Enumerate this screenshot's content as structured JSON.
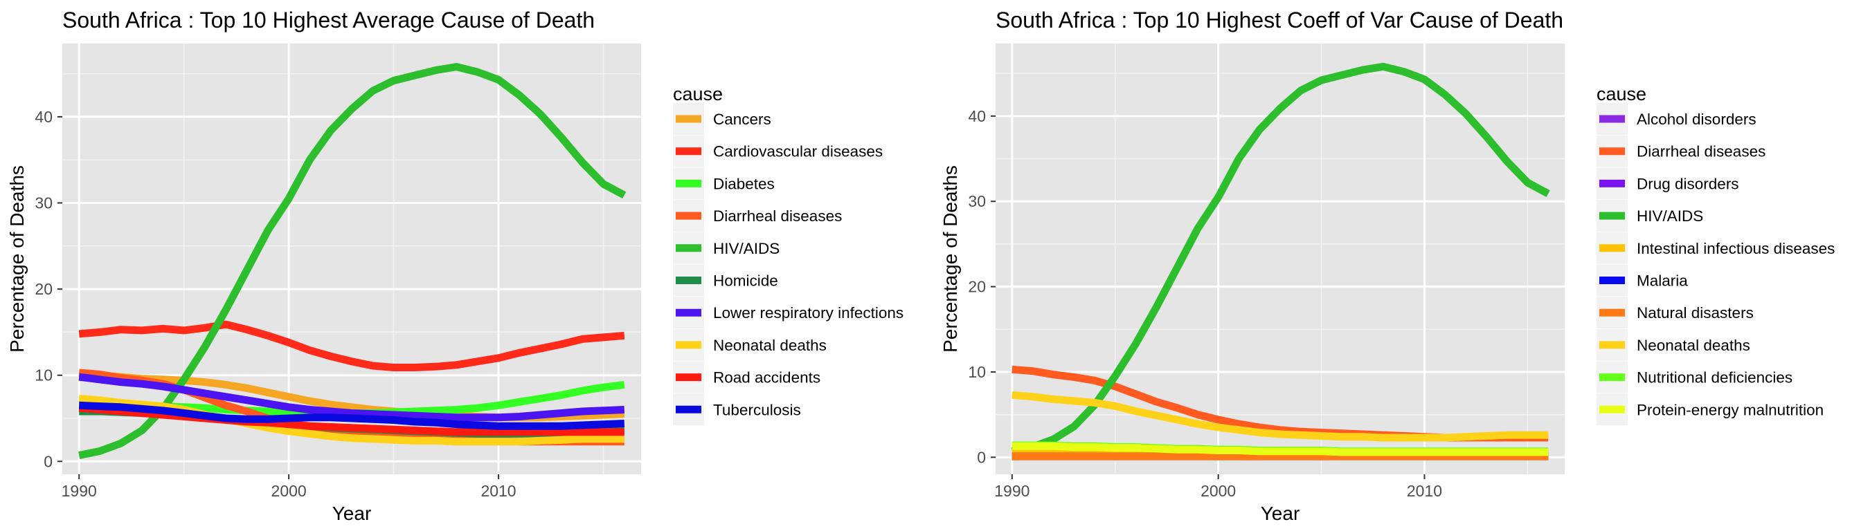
{
  "chart_data": [
    {
      "type": "line",
      "title": "South Africa : Top  10  Highest Average Cause of Death",
      "xlabel": "Year",
      "ylabel": "Percentage of Deaths",
      "xlim": [
        1989.2,
        2016.8
      ],
      "ylim": [
        -1.5,
        48.5
      ],
      "x_ticks": [
        1990,
        2000,
        2010
      ],
      "y_ticks": [
        0,
        10,
        20,
        30,
        40
      ],
      "x_tick_labels": [
        "1990",
        "2000",
        "2010"
      ],
      "y_tick_labels": [
        "0",
        "10",
        "20",
        "30",
        "40"
      ],
      "grid": true,
      "legend": {
        "title": "cause",
        "position": "right"
      },
      "x": [
        1990,
        1991,
        1992,
        1993,
        1994,
        1995,
        1996,
        1997,
        1998,
        1999,
        2000,
        2001,
        2002,
        2003,
        2004,
        2005,
        2006,
        2007,
        2008,
        2009,
        2010,
        2011,
        2012,
        2013,
        2014,
        2015,
        2016
      ],
      "series": [
        {
          "name": "Cancers",
          "color": "#F5A623",
          "values": [
            10.2,
            10.0,
            9.8,
            9.6,
            9.5,
            9.4,
            9.2,
            8.9,
            8.5,
            8.0,
            7.5,
            7.0,
            6.6,
            6.3,
            6.0,
            5.8,
            5.6,
            5.4,
            5.3,
            5.2,
            5.1,
            5.1,
            5.1,
            5.2,
            5.3,
            5.4,
            5.5
          ]
        },
        {
          "name": "Cardiovascular diseases",
          "color": "#FF2A1A",
          "values": [
            14.8,
            15.0,
            15.3,
            15.2,
            15.4,
            15.2,
            15.5,
            15.9,
            15.3,
            14.6,
            13.8,
            12.9,
            12.2,
            11.6,
            11.1,
            10.9,
            10.9,
            11.0,
            11.2,
            11.6,
            12.0,
            12.6,
            13.1,
            13.6,
            14.2,
            14.4,
            14.6
          ]
        },
        {
          "name": "Diabetes",
          "color": "#33FF22",
          "values": [
            6.8,
            6.7,
            6.6,
            6.5,
            6.4,
            6.3,
            6.2,
            6.0,
            5.9,
            5.8,
            5.7,
            5.6,
            5.6,
            5.6,
            5.6,
            5.7,
            5.8,
            5.9,
            6.0,
            6.2,
            6.5,
            6.9,
            7.3,
            7.7,
            8.2,
            8.6,
            8.9
          ]
        },
        {
          "name": "Diarrheal diseases",
          "color": "#FF5A1F",
          "values": [
            10.3,
            10.1,
            9.7,
            9.4,
            9.0,
            8.3,
            7.4,
            6.5,
            5.8,
            5.0,
            4.4,
            3.9,
            3.5,
            3.2,
            3.0,
            2.9,
            2.8,
            2.7,
            2.6,
            2.5,
            2.4,
            2.3,
            2.3,
            2.3,
            2.3,
            2.3,
            2.3
          ]
        },
        {
          "name": "HIV/AIDS",
          "color": "#2DBE2D",
          "values": [
            0.7,
            1.2,
            2.1,
            3.6,
            6.1,
            9.5,
            13.3,
            17.6,
            22.2,
            26.8,
            30.5,
            35.0,
            38.4,
            40.9,
            43.0,
            44.2,
            44.8,
            45.4,
            45.8,
            45.2,
            44.3,
            42.5,
            40.3,
            37.6,
            34.7,
            32.2,
            30.9
          ]
        },
        {
          "name": "Homicide",
          "color": "#1E8C4A",
          "values": [
            5.8,
            5.8,
            5.7,
            5.6,
            5.5,
            5.3,
            5.1,
            4.9,
            4.7,
            4.5,
            4.3,
            4.1,
            3.9,
            3.8,
            3.7,
            3.6,
            3.5,
            3.4,
            3.3,
            3.2,
            3.2,
            3.2,
            3.2,
            3.3,
            3.4,
            3.5,
            3.6
          ]
        },
        {
          "name": "Lower respiratory infections",
          "color": "#4B14F0",
          "values": [
            9.8,
            9.5,
            9.2,
            9.0,
            8.7,
            8.3,
            7.9,
            7.5,
            7.1,
            6.7,
            6.3,
            6.0,
            5.8,
            5.6,
            5.5,
            5.4,
            5.3,
            5.2,
            5.1,
            5.1,
            5.1,
            5.2,
            5.4,
            5.6,
            5.8,
            5.9,
            6.0
          ]
        },
        {
          "name": "Neonatal deaths",
          "color": "#FFD21A",
          "values": [
            7.3,
            7.1,
            6.8,
            6.6,
            6.4,
            6.0,
            5.4,
            4.9,
            4.4,
            3.9,
            3.5,
            3.2,
            2.9,
            2.7,
            2.6,
            2.5,
            2.4,
            2.4,
            2.3,
            2.3,
            2.3,
            2.3,
            2.4,
            2.5,
            2.6,
            2.6,
            2.6
          ]
        },
        {
          "name": "Road accidents",
          "color": "#FF1A10",
          "values": [
            6.2,
            6.0,
            5.8,
            5.6,
            5.4,
            5.2,
            5.0,
            4.8,
            4.6,
            4.5,
            4.3,
            4.1,
            4.0,
            3.9,
            3.8,
            3.7,
            3.6,
            3.5,
            3.4,
            3.4,
            3.4,
            3.4,
            3.4,
            3.4,
            3.4,
            3.4,
            3.4
          ]
        },
        {
          "name": "Tuberculosis",
          "color": "#0A0AE0",
          "values": [
            6.5,
            6.4,
            6.3,
            6.1,
            5.9,
            5.6,
            5.3,
            5.0,
            4.9,
            4.9,
            5.0,
            5.1,
            5.1,
            5.0,
            4.9,
            4.8,
            4.6,
            4.5,
            4.3,
            4.2,
            4.1,
            4.1,
            4.1,
            4.1,
            4.2,
            4.3,
            4.4
          ]
        }
      ]
    },
    {
      "type": "line",
      "title": "South Africa : Top  10  Highest Coeff of Var Cause of Death",
      "xlabel": "Year",
      "ylabel": "Percentage of Deaths",
      "xlim": [
        1989.2,
        2016.8
      ],
      "ylim": [
        -2.0,
        48.5
      ],
      "x_ticks": [
        1990,
        2000,
        2010
      ],
      "y_ticks": [
        0,
        10,
        20,
        30,
        40
      ],
      "x_tick_labels": [
        "1990",
        "2000",
        "2010"
      ],
      "y_tick_labels": [
        "0",
        "10",
        "20",
        "30",
        "40"
      ],
      "grid": true,
      "legend": {
        "title": "cause",
        "position": "right"
      },
      "x": [
        1990,
        1991,
        1992,
        1993,
        1994,
        1995,
        1996,
        1997,
        1998,
        1999,
        2000,
        2001,
        2002,
        2003,
        2004,
        2005,
        2006,
        2007,
        2008,
        2009,
        2010,
        2011,
        2012,
        2013,
        2014,
        2015,
        2016
      ],
      "series": [
        {
          "name": "Alcohol disorders",
          "color": "#8A2BE2",
          "values": [
            0.6,
            0.6,
            0.6,
            0.6,
            0.6,
            0.6,
            0.5,
            0.5,
            0.5,
            0.5,
            0.5,
            0.5,
            0.4,
            0.4,
            0.4,
            0.4,
            0.4,
            0.4,
            0.4,
            0.4,
            0.4,
            0.4,
            0.4,
            0.4,
            0.4,
            0.4,
            0.4
          ]
        },
        {
          "name": "Diarrheal diseases",
          "color": "#FF5A1F",
          "values": [
            10.3,
            10.1,
            9.7,
            9.4,
            9.0,
            8.3,
            7.4,
            6.5,
            5.8,
            5.0,
            4.4,
            3.9,
            3.5,
            3.2,
            3.0,
            2.9,
            2.8,
            2.7,
            2.6,
            2.5,
            2.4,
            2.3,
            2.3,
            2.3,
            2.3,
            2.3,
            2.3
          ]
        },
        {
          "name": "Drug disorders",
          "color": "#7A14F0",
          "values": [
            0.2,
            0.2,
            0.2,
            0.2,
            0.2,
            0.2,
            0.2,
            0.2,
            0.2,
            0.2,
            0.2,
            0.2,
            0.2,
            0.2,
            0.2,
            0.2,
            0.2,
            0.2,
            0.2,
            0.2,
            0.2,
            0.2,
            0.2,
            0.2,
            0.2,
            0.2,
            0.2
          ]
        },
        {
          "name": "HIV/AIDS",
          "color": "#2DBE2D",
          "values": [
            0.7,
            1.2,
            2.1,
            3.6,
            6.1,
            9.5,
            13.3,
            17.6,
            22.2,
            26.8,
            30.5,
            35.0,
            38.4,
            40.9,
            43.0,
            44.2,
            44.8,
            45.4,
            45.8,
            45.2,
            44.3,
            42.5,
            40.3,
            37.6,
            34.7,
            32.2,
            30.9
          ]
        },
        {
          "name": "Intestinal infectious diseases",
          "color": "#FFC200",
          "values": [
            1.0,
            1.0,
            1.0,
            0.9,
            0.9,
            0.9,
            0.8,
            0.8,
            0.7,
            0.7,
            0.6,
            0.6,
            0.6,
            0.5,
            0.5,
            0.5,
            0.5,
            0.5,
            0.5,
            0.5,
            0.5,
            0.5,
            0.5,
            0.5,
            0.5,
            0.5,
            0.5
          ]
        },
        {
          "name": "Malaria",
          "color": "#0A0AF0",
          "values": [
            0.1,
            0.1,
            0.1,
            0.1,
            0.1,
            0.1,
            0.1,
            0.1,
            0.1,
            0.1,
            0.1,
            0.1,
            0.1,
            0.1,
            0.1,
            0.1,
            0.1,
            0.1,
            0.1,
            0.1,
            0.1,
            0.1,
            0.1,
            0.1,
            0.1,
            0.1,
            0.1
          ]
        },
        {
          "name": "Natural disasters",
          "color": "#FF7A14",
          "values": [
            0.1,
            0.1,
            0.1,
            0.1,
            0.1,
            0.1,
            0.1,
            0.1,
            0.1,
            0.1,
            0.1,
            0.1,
            0.1,
            0.1,
            0.1,
            0.1,
            0.1,
            0.1,
            0.1,
            0.1,
            0.1,
            0.1,
            0.1,
            0.1,
            0.1,
            0.1,
            0.1
          ]
        },
        {
          "name": "Neonatal deaths",
          "color": "#FFD21A",
          "values": [
            7.3,
            7.1,
            6.8,
            6.6,
            6.4,
            6.0,
            5.4,
            4.9,
            4.4,
            3.9,
            3.5,
            3.2,
            2.9,
            2.7,
            2.6,
            2.5,
            2.4,
            2.4,
            2.3,
            2.3,
            2.3,
            2.3,
            2.4,
            2.5,
            2.6,
            2.6,
            2.6
          ]
        },
        {
          "name": "Nutritional deficiencies",
          "color": "#66FF1A",
          "values": [
            1.4,
            1.4,
            1.4,
            1.3,
            1.3,
            1.2,
            1.2,
            1.1,
            1.0,
            1.0,
            0.9,
            0.9,
            0.8,
            0.8,
            0.8,
            0.8,
            0.7,
            0.7,
            0.7,
            0.7,
            0.7,
            0.7,
            0.7,
            0.7,
            0.7,
            0.7,
            0.7
          ]
        },
        {
          "name": "Protein-energy malnutrition",
          "color": "#E6FF14",
          "values": [
            1.3,
            1.3,
            1.3,
            1.2,
            1.2,
            1.1,
            1.1,
            1.0,
            0.9,
            0.9,
            0.8,
            0.8,
            0.7,
            0.7,
            0.7,
            0.7,
            0.6,
            0.6,
            0.6,
            0.6,
            0.6,
            0.6,
            0.6,
            0.6,
            0.6,
            0.6,
            0.6
          ]
        }
      ]
    }
  ]
}
